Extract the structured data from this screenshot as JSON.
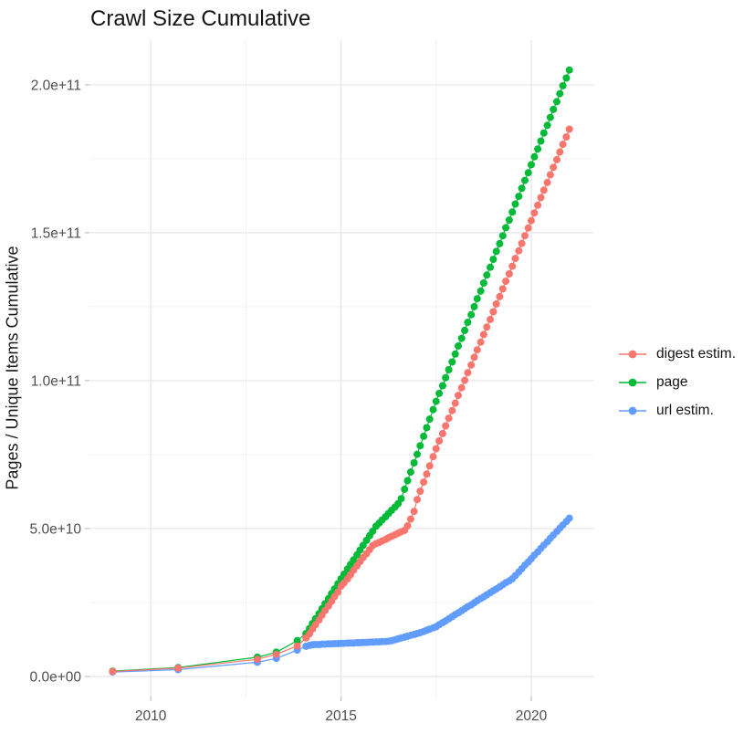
{
  "title": "Crawl Size Cumulative",
  "chart_data": {
    "type": "line",
    "title": "Crawl Size Cumulative",
    "xlabel": "",
    "ylabel": "Pages / Unique Items Cumulative",
    "value_unit_note": "values are in billions (1e9) of pages/items",
    "grid": true,
    "legend_position": "right",
    "xlim": [
      2008.39,
      2021.63
    ],
    "ylim_e9": [
      -6.8,
      215.1
    ],
    "x_axis": {
      "major_ticks": [
        {
          "label": "2010",
          "year": 2010
        },
        {
          "label": "2015",
          "year": 2015
        },
        {
          "label": "2020",
          "year": 2020
        }
      ],
      "minor_ticks": [
        2012.5,
        2017.5
      ]
    },
    "y_axis": {
      "title": "Pages / Unique Items Cumulative",
      "major_ticks": [
        {
          "label": "0.0e+00",
          "value_e9": 0
        },
        {
          "label": "5.0e+10",
          "value_e9": 50
        },
        {
          "label": "1.0e+11",
          "value_e9": 100
        },
        {
          "label": "1.5e+11",
          "value_e9": 150
        },
        {
          "label": "2.0e+11",
          "value_e9": 200
        }
      ],
      "minor_ticks": [
        25,
        75,
        125,
        175
      ]
    },
    "x": [
      2009,
      2010.72,
      2012.8,
      2013.3,
      2013.85,
      2014.08,
      2014.17,
      2014.25,
      2014.33,
      2014.42,
      2014.5,
      2014.58,
      2014.67,
      2014.75,
      2014.83,
      2014.92,
      2015,
      2015.08,
      2015.17,
      2015.25,
      2015.33,
      2015.42,
      2015.5,
      2015.58,
      2015.67,
      2015.75,
      2015.83,
      2015.92,
      2016,
      2016.08,
      2016.17,
      2016.25,
      2016.33,
      2016.42,
      2016.5,
      2016.58,
      2016.67,
      2016.75,
      2016.83,
      2016.92,
      2017,
      2017.08,
      2017.17,
      2017.25,
      2017.33,
      2017.42,
      2017.5,
      2017.58,
      2017.67,
      2017.75,
      2017.83,
      2017.92,
      2018,
      2018.08,
      2018.17,
      2018.25,
      2018.33,
      2018.42,
      2018.5,
      2018.58,
      2018.67,
      2018.75,
      2018.83,
      2018.92,
      2019,
      2019.08,
      2019.17,
      2019.25,
      2019.33,
      2019.42,
      2019.5,
      2019.58,
      2019.67,
      2019.75,
      2019.83,
      2019.92,
      2020,
      2020.08,
      2020.17,
      2020.25,
      2020.33,
      2020.42,
      2020.5,
      2020.58,
      2020.67,
      2020.75,
      2020.83,
      2020.92,
      2021
    ],
    "series": [
      {
        "name": "digest estim.",
        "color": "#F8766D",
        "values_e9": [
          1.7,
          2.8,
          5.8,
          7.5,
          10.3,
          13.0,
          14.4,
          16.0,
          17.5,
          19.1,
          20.7,
          22.3,
          23.8,
          25.4,
          27.0,
          28.5,
          30.5,
          31.6,
          33.0,
          34.4,
          35.9,
          37.4,
          38.8,
          40.2,
          41.5,
          42.9,
          44.2,
          44.9,
          45.3,
          45.8,
          46.3,
          46.9,
          47.4,
          47.9,
          48.4,
          48.9,
          49.4,
          50.9,
          53.2,
          55.8,
          59.8,
          62.6,
          65.7,
          68.4,
          71.2,
          74.3,
          77.0,
          79.6,
          82.1,
          84.7,
          87.3,
          89.9,
          92.4,
          95.0,
          97.6,
          100.1,
          102.7,
          105.3,
          107.9,
          110.4,
          113.0,
          115.6,
          118.1,
          120.7,
          123.3,
          125.9,
          128.4,
          131.0,
          133.6,
          136.1,
          138.7,
          141.3,
          143.9,
          146.4,
          149.0,
          151.6,
          154.1,
          156.7,
          159.3,
          161.9,
          164.4,
          167.0,
          169.6,
          172.1,
          174.7,
          177.3,
          179.9,
          182.4,
          185.0
        ]
      },
      {
        "name": "page",
        "color": "#00BA38",
        "values_e9": [
          1.8,
          3.0,
          6.5,
          8.2,
          12.1,
          14.5,
          16.2,
          17.9,
          19.5,
          21.2,
          22.9,
          24.6,
          26.3,
          28.0,
          29.6,
          31.3,
          33.0,
          34.6,
          36.3,
          37.9,
          39.4,
          41.1,
          42.7,
          44.3,
          46.0,
          47.6,
          49.1,
          50.8,
          51.8,
          52.9,
          54.0,
          55.1,
          56.2,
          57.3,
          58.4,
          60.1,
          63.3,
          66.2,
          69.1,
          72.2,
          75.1,
          78.0,
          81.2,
          84.1,
          87.0,
          90.2,
          93.0,
          95.7,
          98.3,
          101.0,
          103.7,
          106.3,
          109.0,
          111.7,
          114.3,
          117.0,
          119.7,
          122.3,
          125.0,
          127.7,
          130.3,
          133.0,
          135.7,
          138.3,
          141.0,
          143.7,
          146.3,
          149.0,
          151.7,
          154.3,
          157.0,
          159.7,
          162.3,
          165.0,
          167.7,
          170.3,
          173.0,
          175.7,
          178.3,
          181.0,
          183.7,
          186.3,
          189.0,
          191.7,
          194.3,
          197.0,
          199.7,
          202.3,
          205.0
        ]
      },
      {
        "name": "url estim.",
        "color": "#619CFF",
        "values_e9": [
          1.5,
          2.3,
          4.8,
          6.1,
          8.9,
          10.2,
          10.5,
          10.7,
          10.8,
          10.8,
          10.9,
          10.9,
          11.0,
          11.0,
          11.1,
          11.1,
          11.2,
          11.2,
          11.3,
          11.3,
          11.3,
          11.4,
          11.4,
          11.5,
          11.5,
          11.6,
          11.6,
          11.7,
          11.7,
          11.8,
          11.8,
          11.9,
          12.1,
          12.4,
          12.7,
          13.0,
          13.3,
          13.6,
          13.9,
          14.2,
          14.5,
          14.8,
          15.2,
          15.6,
          16.0,
          16.4,
          16.8,
          17.5,
          18.2,
          18.8,
          19.5,
          20.2,
          20.9,
          21.5,
          22.2,
          22.9,
          23.6,
          24.2,
          24.9,
          25.6,
          26.3,
          26.9,
          27.6,
          28.3,
          29.0,
          29.6,
          30.3,
          31.0,
          31.7,
          32.3,
          33.0,
          34.1,
          35.3,
          36.4,
          37.6,
          38.7,
          39.8,
          41.0,
          42.1,
          43.3,
          44.4,
          45.5,
          46.7,
          47.8,
          49.0,
          50.1,
          51.2,
          52.4,
          53.5
        ]
      }
    ]
  },
  "legend": {
    "items": [
      {
        "label": "digest estim.",
        "color": "#F8766D"
      },
      {
        "label": "page",
        "color": "#00BA38"
      },
      {
        "label": "url estim.",
        "color": "#619CFF"
      }
    ]
  },
  "styles": {
    "background": "#FFFFFF",
    "grid_major": "#E4E4E4",
    "grid_minor": "#F0F0F0",
    "tick_color": "#BEBEBE",
    "tick_label_color": "#4D4D4D",
    "text_color": "#141414"
  }
}
